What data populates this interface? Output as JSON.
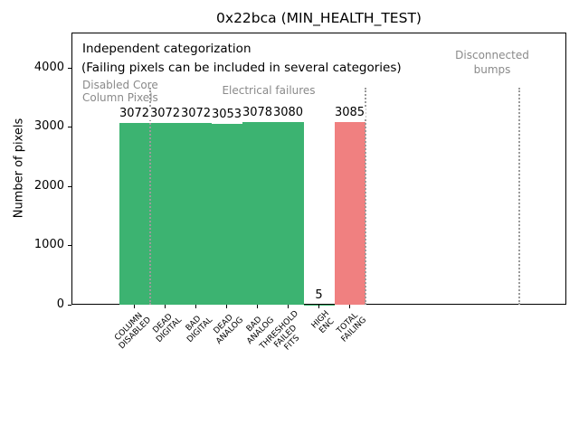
{
  "chart_data": {
    "type": "bar",
    "title": "0x22bca (MIN_HEALTH_TEST)",
    "ylabel": "Number of pixels",
    "xlabel": "",
    "categories": [
      "COLUMN\nDISABLED",
      "DEAD\nDIGITAL",
      "BAD\nDIGITAL",
      "DEAD\nANALOG",
      "BAD\nANALOG",
      "THRESHOLD\nFAILED\nFITS",
      "HIGH\nENC",
      "TOTAL\nFAILING"
    ],
    "values": [
      3072,
      3072,
      3072,
      3053,
      3078,
      3080,
      5,
      3085
    ],
    "bar_value_labels": [
      "3072",
      "3072",
      "3072",
      "3053",
      "3078",
      "3080",
      "5",
      "3085"
    ],
    "bar_colors": [
      "#3cb371",
      "#3cb371",
      "#3cb371",
      "#3cb371",
      "#3cb371",
      "#3cb371",
      "#3cb371",
      "#f08080"
    ],
    "yticks": [
      0,
      1000,
      2000,
      3000,
      4000
    ],
    "ylim": [
      0,
      4590
    ],
    "grid": false,
    "legend": null,
    "separator_positions_category_units": [
      0.5,
      7.5,
      12.5
    ]
  },
  "annotations": {
    "independent": "Independent categorization",
    "failing_note": "(Failing pixels can be included in several categories)",
    "section_disabled": "Disabled Core\nColumn Pixels",
    "section_electrical": "Electrical failures",
    "section_disconnected": "Disconnected\nbumps"
  },
  "colors": {
    "bar_green": "#3cb371",
    "bar_red": "#f08080",
    "gray_annotation": "#8a8a8a",
    "separator_dotted": "#9b9b9b",
    "axis": "#000000",
    "background": "#ffffff"
  }
}
